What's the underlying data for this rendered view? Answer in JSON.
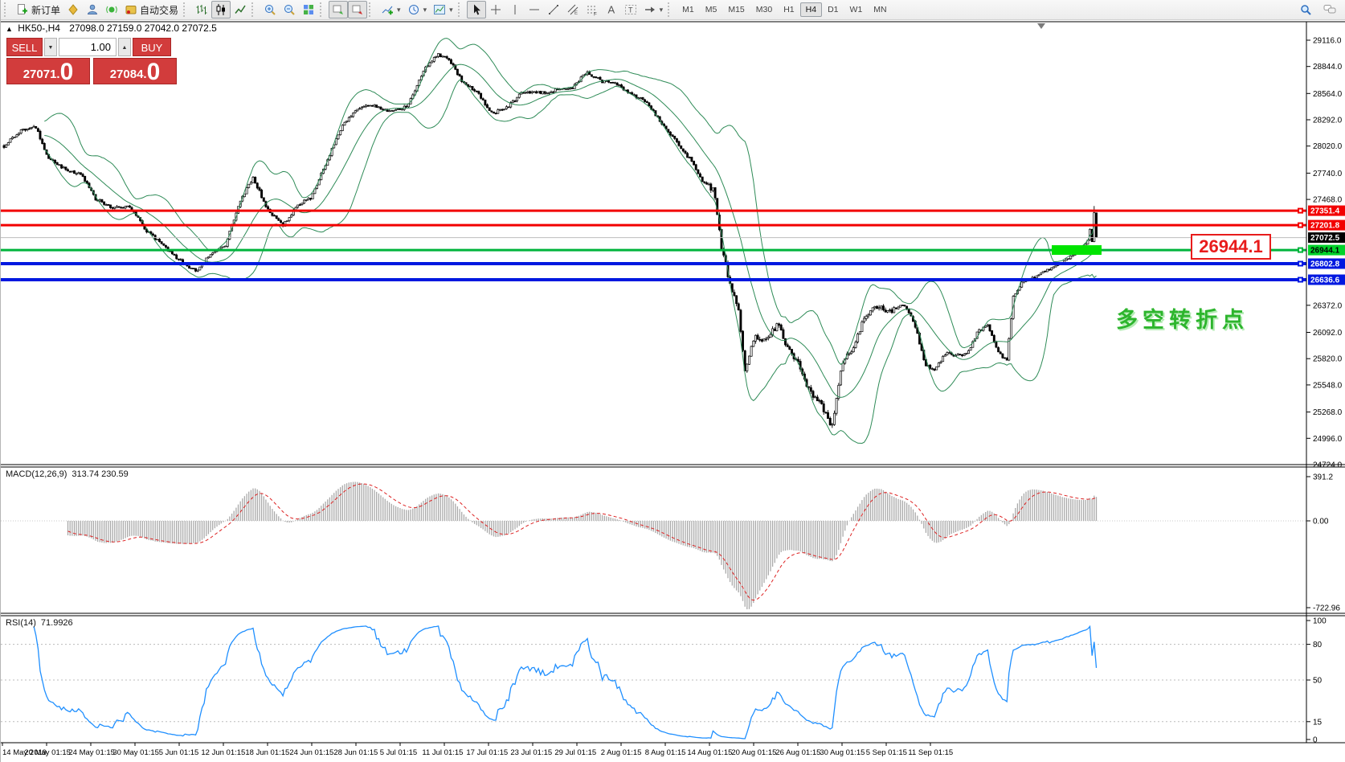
{
  "toolbar": {
    "groups": [
      {
        "name": "orders",
        "items": [
          {
            "icon": "new-order",
            "label": "新订单"
          },
          {
            "icon": "chart-profile"
          },
          {
            "icon": "terminal"
          },
          {
            "icon": "signal"
          },
          {
            "icon": "auto-trade",
            "label": "自动交易"
          }
        ]
      },
      {
        "name": "chart-types",
        "items": [
          {
            "icon": "bar-chart"
          },
          {
            "icon": "candlestick",
            "active": true
          },
          {
            "icon": "line-chart"
          }
        ]
      },
      {
        "name": "zoom",
        "items": [
          {
            "icon": "zoom-in"
          },
          {
            "icon": "zoom-out"
          },
          {
            "icon": "tile-windows"
          }
        ]
      },
      {
        "name": "windows",
        "items": [
          {
            "icon": "arrange",
            "active": true
          },
          {
            "icon": "stagger",
            "active": true
          }
        ]
      },
      {
        "name": "inserts",
        "items": [
          {
            "icon": "add-indicator",
            "dropdown": true
          },
          {
            "icon": "clock",
            "dropdown": true
          },
          {
            "icon": "template",
            "dropdown": true
          }
        ]
      },
      {
        "name": "drawing",
        "items": [
          {
            "icon": "cursor",
            "active": true
          },
          {
            "icon": "crosshair"
          },
          {
            "icon": "vline"
          },
          {
            "icon": "hline"
          },
          {
            "icon": "trendline"
          },
          {
            "icon": "channel"
          },
          {
            "icon": "fibonacci"
          },
          {
            "icon": "text"
          },
          {
            "icon": "text-label"
          },
          {
            "icon": "shapes",
            "dropdown": true
          }
        ]
      }
    ],
    "timeframes": [
      "M1",
      "M5",
      "M15",
      "M30",
      "H1",
      "H4",
      "D1",
      "W1",
      "MN"
    ],
    "active_timeframe": "H4",
    "right_icons": [
      "search",
      "chat"
    ]
  },
  "chart": {
    "symbol_marker": "▲",
    "symbol": "HK50-,H4",
    "ohlc": "27098.0 27159.0 27042.0 27072.5",
    "trade_panel": {
      "sell_label": "SELL",
      "buy_label": "BUY",
      "lot_value": "1.00",
      "lot_down_glyph": "▼",
      "lot_up_glyph": "▲",
      "sell_price_main": "27071.",
      "sell_price_big": "0",
      "buy_price_main": "27084.",
      "buy_price_big": "0"
    },
    "y_axis_ticks": [
      "29116.0",
      "28844.0",
      "28564.0",
      "28292.0",
      "28020.0",
      "27740.0",
      "27468.0",
      "26372.0",
      "26092.0",
      "25820.0",
      "25548.0",
      "25268.0",
      "24996.0",
      "24724.0"
    ],
    "price_labels": [
      {
        "text": "27351.4",
        "bg": "#f20000",
        "fg": "#ffffff",
        "line": "#f20000",
        "lw": 3
      },
      {
        "text": "27201.8",
        "bg": "#f20000",
        "fg": "#ffffff",
        "line": "#f20000",
        "lw": 3
      },
      {
        "text": "27072.5",
        "bg": "#000000",
        "fg": "#ffffff",
        "line": "#bdbdbd",
        "lw": 1
      },
      {
        "text": "26944.1",
        "bg": "#00d22a",
        "fg": "#000000",
        "line": "#00b43c",
        "lw": 3
      },
      {
        "text": "26802.8",
        "bg": "#0018e0",
        "fg": "#ffffff",
        "line": "#0018e0",
        "lw": 4
      },
      {
        "text": "26636.6",
        "bg": "#0018e0",
        "fg": "#ffffff",
        "line": "#0018e0",
        "lw": 4
      }
    ],
    "highlight": {
      "price": 26944.1,
      "x": 1308,
      "width": 62,
      "color": "#00e400"
    },
    "annotation": {
      "text": "多空转折点",
      "color": "#2db52d"
    },
    "callout": {
      "text": "26944.1",
      "color": "#e81c1c"
    },
    "x_axis_labels": [
      "14 May 2019",
      "20 May 01:15",
      "24 May 01:15",
      "30 May 01:15",
      "5 Jun 01:15",
      "12 Jun 01:15",
      "18 Jun 01:15",
      "24 Jun 01:15",
      "28 Jun 01:15",
      "5 Jul 01:15",
      "11 Jul 01:15",
      "17 Jul 01:15",
      "23 Jul 01:15",
      "29 Jul 01:15",
      "2 Aug 01:15",
      "8 Aug 01:15",
      "14 Aug 01:15",
      "20 Aug 01:15",
      "26 Aug 01:15",
      "30 Aug 01:15",
      "5 Sep 01:15",
      "11 Sep 01:15"
    ]
  },
  "macd": {
    "name": "MACD(12,26,9)",
    "values": "313.74 230.59",
    "axis_labels": [
      "391.2",
      "0.00",
      "-722.96"
    ]
  },
  "rsi": {
    "name": "RSI(14)",
    "value": "71.9926",
    "axis_labels": [
      100,
      80,
      50,
      15,
      0
    ],
    "levels": [
      80,
      50,
      15
    ]
  },
  "chart_data": {
    "type": "candlestick",
    "symbol": "HK50",
    "timeframe": "H4",
    "title": "HK50-,H4 27098.0 27159.0 27042.0 27072.5",
    "ylim": [
      24724,
      29257
    ],
    "date_range": "14 May 2019 - 11 Sep 2019",
    "indicators": [
      "Bollinger Bands(20,2)",
      "MACD(12,26,9)=313.74/230.59",
      "RSI(14)=71.9926"
    ],
    "key_levels": [
      27351.4,
      27201.8,
      27072.5,
      26944.1,
      26802.8,
      26636.6
    ],
    "last_close": 27072.5,
    "price_anchors": [
      [
        4,
        28020
      ],
      [
        21,
        28160
      ],
      [
        43,
        28230
      ],
      [
        59,
        27900
      ],
      [
        80,
        27780
      ],
      [
        101,
        27720
      ],
      [
        117,
        27480
      ],
      [
        138,
        27380
      ],
      [
        160,
        27400
      ],
      [
        181,
        27150
      ],
      [
        202,
        26990
      ],
      [
        224,
        26830
      ],
      [
        243,
        26720
      ],
      [
        261,
        26900
      ],
      [
        279,
        26980
      ],
      [
        298,
        27450
      ],
      [
        314,
        27700
      ],
      [
        332,
        27360
      ],
      [
        351,
        27200
      ],
      [
        371,
        27420
      ],
      [
        386,
        27480
      ],
      [
        405,
        27850
      ],
      [
        426,
        28250
      ],
      [
        445,
        28420
      ],
      [
        463,
        28450
      ],
      [
        484,
        28370
      ],
      [
        506,
        28430
      ],
      [
        527,
        28820
      ],
      [
        543,
        28970
      ],
      [
        559,
        28900
      ],
      [
        575,
        28680
      ],
      [
        594,
        28580
      ],
      [
        609,
        28360
      ],
      [
        628,
        28400
      ],
      [
        650,
        28580
      ],
      [
        671,
        28570
      ],
      [
        692,
        28600
      ],
      [
        711,
        28620
      ],
      [
        729,
        28790
      ],
      [
        748,
        28690
      ],
      [
        767,
        28660
      ],
      [
        786,
        28550
      ],
      [
        804,
        28480
      ],
      [
        822,
        28250
      ],
      [
        841,
        28060
      ],
      [
        858,
        27880
      ],
      [
        873,
        27660
      ],
      [
        888,
        27560
      ],
      [
        897,
        26980
      ],
      [
        907,
        26600
      ],
      [
        918,
        26330
      ],
      [
        926,
        25700
      ],
      [
        939,
        26050
      ],
      [
        953,
        26010
      ],
      [
        967,
        26180
      ],
      [
        980,
        25910
      ],
      [
        992,
        25780
      ],
      [
        1006,
        25500
      ],
      [
        1020,
        25350
      ],
      [
        1035,
        25120
      ],
      [
        1048,
        25800
      ],
      [
        1061,
        25920
      ],
      [
        1076,
        26280
      ],
      [
        1091,
        26350
      ],
      [
        1107,
        26320
      ],
      [
        1123,
        26380
      ],
      [
        1137,
        26200
      ],
      [
        1150,
        25760
      ],
      [
        1163,
        25700
      ],
      [
        1176,
        25880
      ],
      [
        1190,
        25850
      ],
      [
        1203,
        25870
      ],
      [
        1216,
        26100
      ],
      [
        1229,
        26160
      ],
      [
        1242,
        25880
      ],
      [
        1252,
        25800
      ],
      [
        1260,
        26450
      ],
      [
        1270,
        26600
      ],
      [
        1282,
        26650
      ],
      [
        1294,
        26700
      ],
      [
        1306,
        26750
      ],
      [
        1318,
        26800
      ],
      [
        1330,
        26870
      ],
      [
        1341,
        26940
      ],
      [
        1352,
        27010
      ],
      [
        1360,
        27330
      ],
      [
        1366,
        27072.5
      ]
    ]
  }
}
